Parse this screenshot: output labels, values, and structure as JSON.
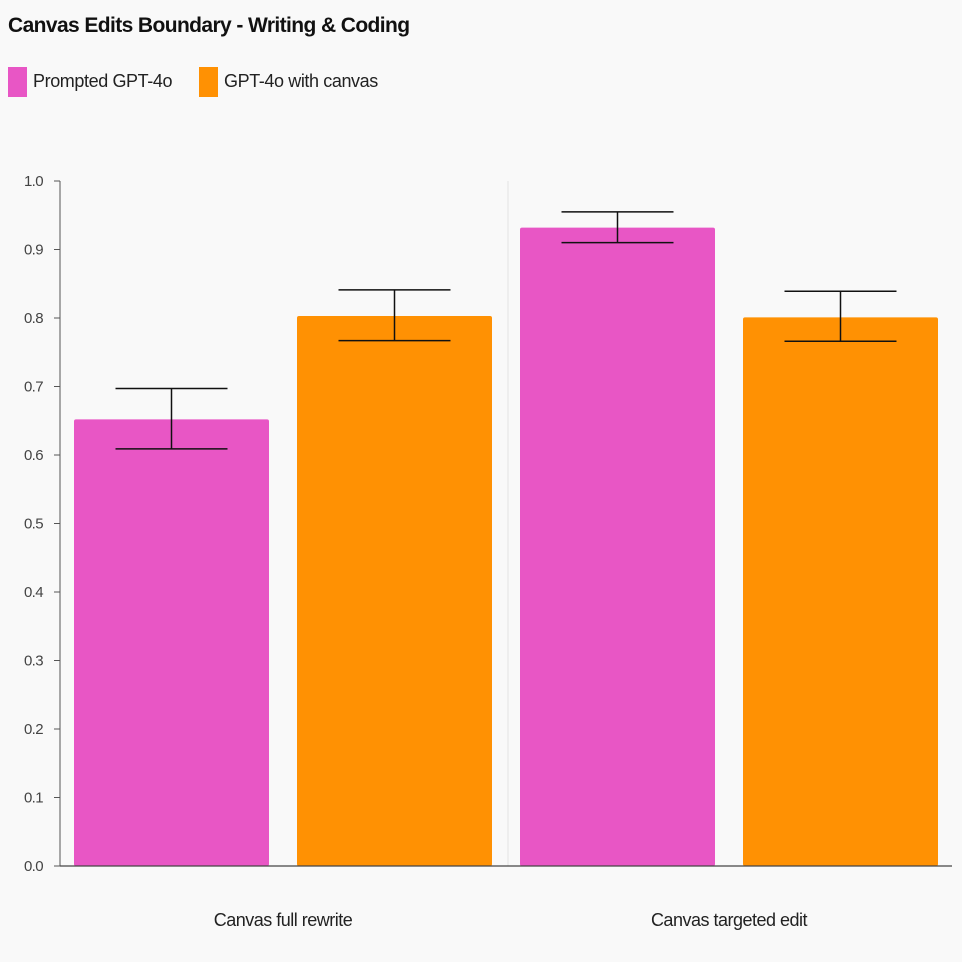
{
  "chart_data": {
    "type": "bar",
    "title": "Canvas Edits Boundary - Writing & Coding",
    "xlabel": "",
    "ylabel": "",
    "ylim": [
      0,
      1.0
    ],
    "yticks": [
      "0.0",
      "0.1",
      "0.2",
      "0.3",
      "0.4",
      "0.5",
      "0.6",
      "0.7",
      "0.8",
      "0.9",
      "1.0"
    ],
    "categories": [
      "Canvas full rewrite",
      "Canvas targeted edit"
    ],
    "series": [
      {
        "name": "Prompted GPT-4o",
        "color": "#e856c5",
        "values": [
          0.652,
          0.932
        ],
        "error_low": [
          0.609,
          0.91
        ],
        "error_high": [
          0.697,
          0.955
        ]
      },
      {
        "name": "GPT-4o with canvas",
        "color": "#ff9103",
        "values": [
          0.803,
          0.801
        ],
        "error_low": [
          0.767,
          0.766
        ],
        "error_high": [
          0.841,
          0.839
        ]
      }
    ],
    "legend_position": "top-left",
    "grid": false
  }
}
